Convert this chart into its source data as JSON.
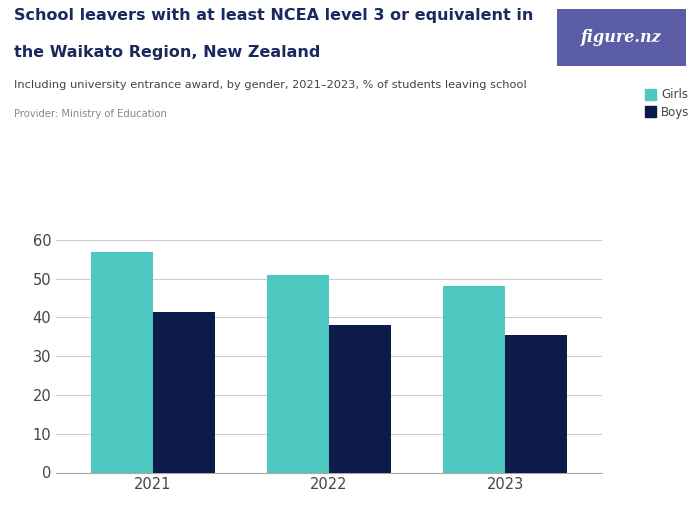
{
  "title_line1": "School leavers with at least NCEA level 3 or equivalent in",
  "title_line2": "the Waikato Region, New Zealand",
  "subtitle": "Including university entrance award, by gender, 2021–2023, % of students leaving school",
  "provider": "Provider: Ministry of Education",
  "years": [
    "2021",
    "2022",
    "2023"
  ],
  "girls_values": [
    57.0,
    51.0,
    48.0
  ],
  "boys_values": [
    41.5,
    38.0,
    35.5
  ],
  "girls_color": "#4DC8C0",
  "boys_color": "#0D1B4B",
  "bar_width": 0.35,
  "ylim": [
    0,
    65
  ],
  "yticks": [
    0,
    10,
    20,
    30,
    40,
    50,
    60
  ],
  "background_color": "#ffffff",
  "title_color": "#1a2a5e",
  "subtitle_color": "#444444",
  "provider_color": "#888888",
  "legend_girls": "Girls",
  "legend_boys": "Boys",
  "figure_nz_bg": "#5B5EA6",
  "figure_nz_text": "figure.nz"
}
